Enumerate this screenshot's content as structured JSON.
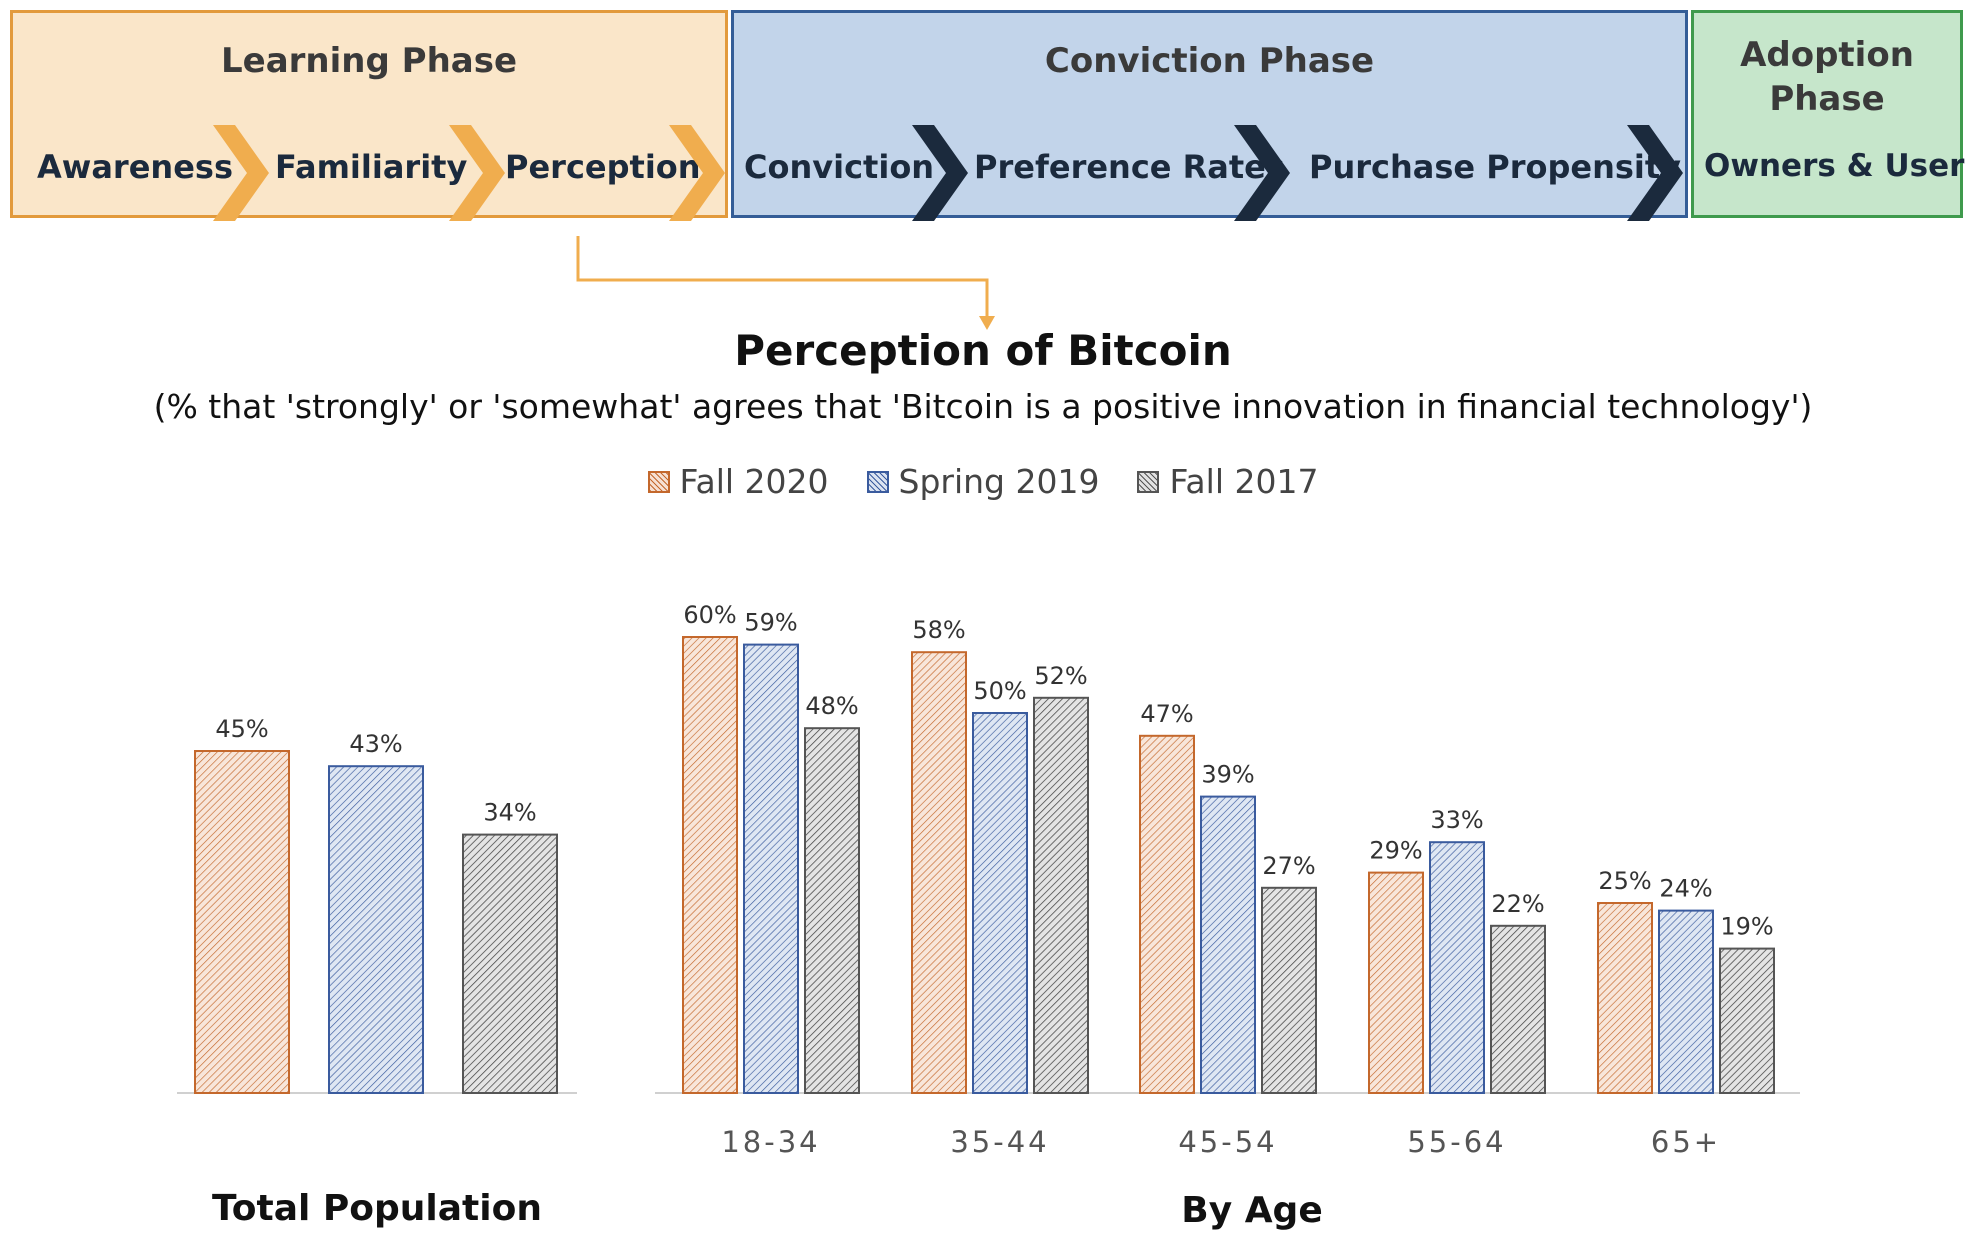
{
  "phases": {
    "learning": {
      "title": "Learning Phase",
      "steps": [
        "Awareness",
        "Familiarity",
        "Perception"
      ],
      "color": "#e29a3c",
      "fill": "#fae6c9"
    },
    "conviction": {
      "title": "Conviction Phase",
      "steps": [
        "Conviction",
        "Preference Rates",
        "Purchase Propensity"
      ],
      "color": "#345d97",
      "fill": "#c2d4ea"
    },
    "adoption": {
      "title": "Adoption Phase",
      "steps": [
        "Owners & Users"
      ],
      "color": "#3f9a4d",
      "fill": "#c6e6cb"
    }
  },
  "chart_data": {
    "type": "bar",
    "title": "Perception of Bitcoin",
    "subtitle": "(% that 'strongly' or 'somewhat' agrees that 'Bitcoin is a positive innovation in financial technology')",
    "legend_placement": "top",
    "grid": false,
    "ylim": [
      0,
      65
    ],
    "series": [
      {
        "name": "Fall 2020",
        "color": "#c4682c"
      },
      {
        "name": "Spring 2019",
        "color": "#3a5b9e"
      },
      {
        "name": "Fall 2017",
        "color": "#555555"
      }
    ],
    "groups": [
      {
        "label": "Total Population",
        "categories": [
          ""
        ],
        "values": [
          [
            45
          ],
          [
            43
          ],
          [
            34
          ]
        ],
        "value_labels": [
          [
            "45%"
          ],
          [
            "43%"
          ],
          [
            "34%"
          ]
        ]
      },
      {
        "label": "By Age",
        "categories": [
          "18-34",
          "35-44",
          "45-54",
          "55-64",
          "65+"
        ],
        "values": [
          [
            60,
            58,
            47,
            29,
            25
          ],
          [
            59,
            50,
            39,
            33,
            24
          ],
          [
            48,
            52,
            27,
            22,
            19
          ]
        ],
        "value_labels": [
          [
            "60%",
            "58%",
            "47%",
            "29%",
            "25%"
          ],
          [
            "59%",
            "50%",
            "39%",
            "33%",
            "24%"
          ],
          [
            "48%",
            "52%",
            "27%",
            "22%",
            "19%"
          ]
        ]
      }
    ]
  }
}
